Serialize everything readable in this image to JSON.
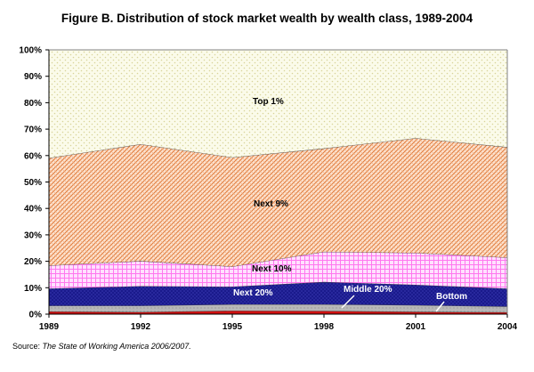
{
  "chart_data": {
    "type": "area",
    "stacked": true,
    "title": "Figure B. Distribution of stock market wealth by wealth class, 1989-2004",
    "source_prefix": "Source:",
    "source_title": "The State of Working America 2006/2007.",
    "x": [
      "1989",
      "1992",
      "1995",
      "1998",
      "2001",
      "2004"
    ],
    "ylim": [
      0,
      100
    ],
    "yticks": [
      "0%",
      "10%",
      "20%",
      "30%",
      "40%",
      "50%",
      "60%",
      "70%",
      "80%",
      "90%",
      "100%"
    ],
    "grid": false,
    "legend": "none",
    "series": [
      {
        "name": "Bottom",
        "values": [
          1.0,
          0.8,
          1.3,
          1.2,
          0.9,
          0.7
        ],
        "color": "#cc0000"
      },
      {
        "name": "Middle 20%",
        "values": [
          2.2,
          2.4,
          2.4,
          2.5,
          2.5,
          2.2
        ],
        "color": "#b0b0b0"
      },
      {
        "name": "Next 20%",
        "values": [
          6.5,
          7.4,
          6.7,
          8.5,
          7.7,
          6.8
        ],
        "color": "#1f1f8f"
      },
      {
        "name": "Next 10%",
        "values": [
          8.7,
          9.5,
          7.6,
          11.4,
          12.1,
          11.7
        ],
        "color": "#ff99ff"
      },
      {
        "name": "Next 9%",
        "values": [
          40.7,
          44.2,
          41.3,
          39.1,
          43.4,
          41.8
        ],
        "color": "#e8722a"
      },
      {
        "name": "Top 1%",
        "values": [
          40.9,
          35.7,
          40.7,
          37.3,
          33.4,
          36.8
        ],
        "color": "#f2f0c8"
      }
    ],
    "annotations": [
      "Top 1%",
      "Next 9%",
      "Next 10%",
      "Next 20%",
      "Middle 20%",
      "Bottom"
    ]
  }
}
